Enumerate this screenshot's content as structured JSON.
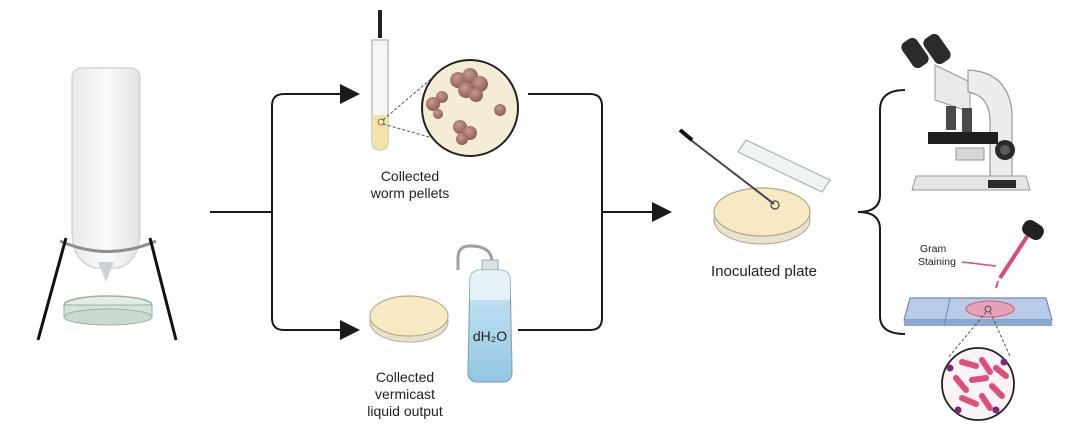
{
  "labels": {
    "pellets_line1": "Collected",
    "pellets_line2": "worm pellets",
    "liquid_line1": "Collected",
    "liquid_line2": "vermicast",
    "liquid_line3": "liquid output",
    "water": "dH₂O",
    "plate": "Inoculated plate",
    "stain_line1": "Gram",
    "stain_line2": "Staining"
  },
  "colors": {
    "arrow": "#1a1a1a",
    "agar": "#f6e9c4",
    "glass": "#e9eef0",
    "pellet": "#9c6b63",
    "water": "#a9d3ea",
    "stain": "#d94b7a",
    "bacteria": "#e04d7a",
    "coccus": "#7a2a7a",
    "slide": "#9bb4d6"
  }
}
